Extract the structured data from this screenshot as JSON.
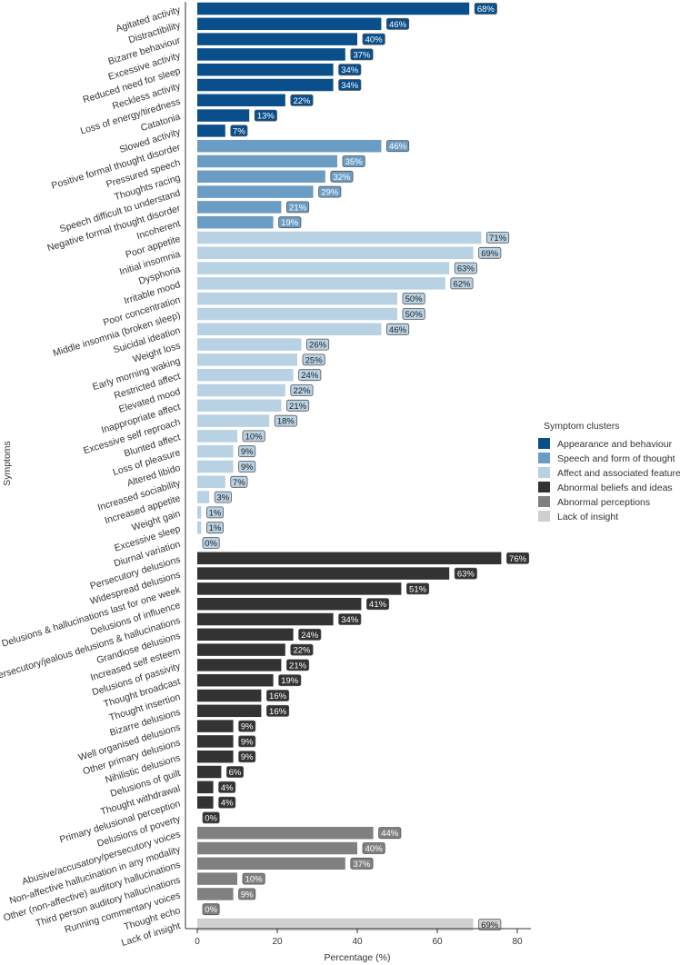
{
  "chart_data": {
    "type": "bar",
    "orientation": "horizontal",
    "xlabel": "Percentage (%)",
    "ylabel": "Symptoms",
    "xlim": [
      0,
      80
    ],
    "x_ticks": [
      0,
      20,
      40,
      60,
      80
    ],
    "legend": {
      "title": "Symptom clusters",
      "placement": "right"
    },
    "value_suffix": "%",
    "series": [
      {
        "name": "Appearance and behaviour",
        "color": "#0a4f8c",
        "label_fill": "#0a4f8c",
        "label_text_color": "#ffffff",
        "categories": [
          "Agitated activity",
          "Distractibility",
          "Bizarre behaviour",
          "Excessive activity",
          "Reduced need for sleep",
          "Reckless activity",
          "Loss of energy/tiredness",
          "Catatonia",
          "Slowed activity"
        ],
        "values": [
          68,
          46,
          40,
          37,
          34,
          34,
          22,
          13,
          7
        ]
      },
      {
        "name": "Speech and form of thought",
        "color": "#6b9cc3",
        "label_fill": "#6b9cc3",
        "label_text_color": "#ffffff",
        "categories": [
          "Positive formal thought disorder",
          "Pressured speech",
          "Thoughts racing",
          "Speech difficult to understand",
          "Negative formal thought disorder",
          "Incoherent"
        ],
        "values": [
          46,
          35,
          32,
          29,
          21,
          19
        ]
      },
      {
        "name": "Affect and associated features",
        "color": "#b8d1e3",
        "label_fill": "#b8d1e3",
        "label_text_color": "#222222",
        "categories": [
          "Poor appetite",
          "Initial insomnia",
          "Dysphoria",
          "Irritable mood",
          "Poor concentration",
          "Middle insomnia (broken sleep)",
          "Suicidal ideation",
          "Weight loss",
          "Early morning waking",
          "Restricted affect",
          "Elevated mood",
          "Inappropriate affect",
          "Excessive self reproach",
          "Blunted affect",
          "Loss of pleasure",
          "Altered libido",
          "Increased sociability",
          "Increased appetite",
          "Weight gain",
          "Excessive sleep",
          "Diurnal variation"
        ],
        "values": [
          71,
          69,
          63,
          62,
          50,
          50,
          46,
          26,
          25,
          24,
          22,
          21,
          18,
          10,
          9,
          9,
          7,
          3,
          1,
          1,
          0
        ]
      },
      {
        "name": "Abnormal beliefs and ideas",
        "color": "#333333",
        "label_fill": "#333333",
        "label_text_color": "#ffffff",
        "categories": [
          "Persecutory delusions",
          "Widespread delusions",
          "Delusions & hallucinations last for one week",
          "Delusions of influence",
          "Persecutory/jealous delusions & hallucinations",
          "Grandiose delusions",
          "Increased self esteem",
          "Delusions of passivity",
          "Thought broadcast",
          "Thought insertion",
          "Bizarre delusions",
          "Well organised delusions",
          "Other primary delusions",
          "Nihilistic delusions",
          "Delusions of guilt",
          "Thought withdrawal",
          "Primary delusional perception",
          "Delusions of poverty"
        ],
        "values": [
          76,
          63,
          51,
          41,
          34,
          24,
          22,
          21,
          19,
          16,
          16,
          9,
          9,
          9,
          6,
          4,
          4,
          0
        ]
      },
      {
        "name": "Abnormal perceptions",
        "color": "#808080",
        "label_fill": "#808080",
        "label_text_color": "#ffffff",
        "categories": [
          "Abusive/accusatory/persecutory voices",
          "Non-affective hallucination in any modality",
          "Other (non-affective) auditory hallucinations",
          "Third person auditory hallucinations",
          "Running commentary voices",
          "Thought echo"
        ],
        "values": [
          44,
          40,
          37,
          10,
          9,
          0
        ]
      },
      {
        "name": "Lack of insight",
        "color": "#cfcfcf",
        "label_fill": "#cfcfcf",
        "label_text_color": "#222222",
        "categories": [
          "Lack of insight"
        ],
        "values": [
          69
        ]
      }
    ]
  }
}
